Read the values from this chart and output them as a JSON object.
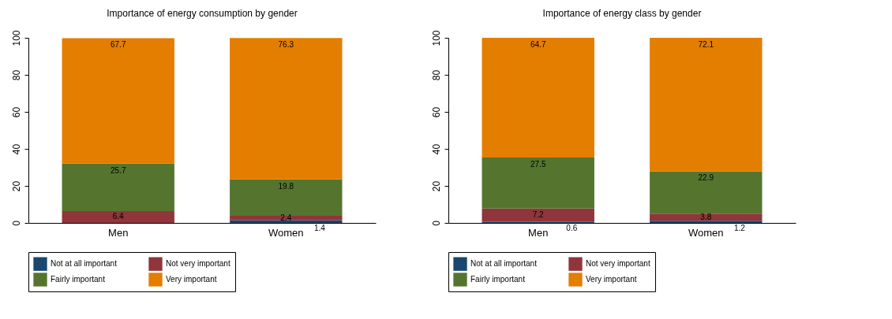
{
  "chart_data": [
    {
      "type": "bar",
      "title": "Importance of energy consumption by gender",
      "categories": [
        "Men",
        "Women"
      ],
      "stacked": true,
      "ylim": [
        0,
        100
      ],
      "yticks": [
        0,
        20,
        40,
        60,
        80,
        100
      ],
      "grid": false,
      "legend": "bottom",
      "series": [
        {
          "name": "Not at all important",
          "color": "#1a476f",
          "values": [
            null,
            1.4
          ],
          "value_labels": [
            null,
            "1.4"
          ]
        },
        {
          "name": "Not very important",
          "color": "#90353b",
          "values": [
            6.4,
            2.4
          ],
          "value_labels": [
            "6.4",
            "2.4"
          ]
        },
        {
          "name": "Fairly important",
          "color": "#55752f",
          "values": [
            25.7,
            19.8
          ],
          "value_labels": [
            "25.7",
            "19.8"
          ]
        },
        {
          "name": "Very important",
          "color": "#e37e00",
          "values": [
            67.7,
            76.3
          ],
          "value_labels": [
            "67.7",
            "76.3"
          ]
        }
      ]
    },
    {
      "type": "bar",
      "title": "Importance of energy class by gender",
      "categories": [
        "Men",
        "Women"
      ],
      "stacked": true,
      "ylim": [
        0,
        100
      ],
      "yticks": [
        0,
        20,
        40,
        60,
        80,
        100
      ],
      "grid": false,
      "legend": "bottom",
      "series": [
        {
          "name": "Not at all important",
          "color": "#1a476f",
          "values": [
            0.6,
            1.2
          ],
          "value_labels": [
            "0.6",
            "1.2"
          ]
        },
        {
          "name": "Not very important",
          "color": "#90353b",
          "values": [
            7.2,
            3.8
          ],
          "value_labels": [
            "7.2",
            "3.8"
          ]
        },
        {
          "name": "Fairly important",
          "color": "#55752f",
          "values": [
            27.5,
            22.9
          ],
          "value_labels": [
            "27.5",
            "22.9"
          ]
        },
        {
          "name": "Very important",
          "color": "#e37e00",
          "values": [
            64.7,
            72.1
          ],
          "value_labels": [
            "64.7",
            "72.1"
          ]
        }
      ]
    }
  ]
}
